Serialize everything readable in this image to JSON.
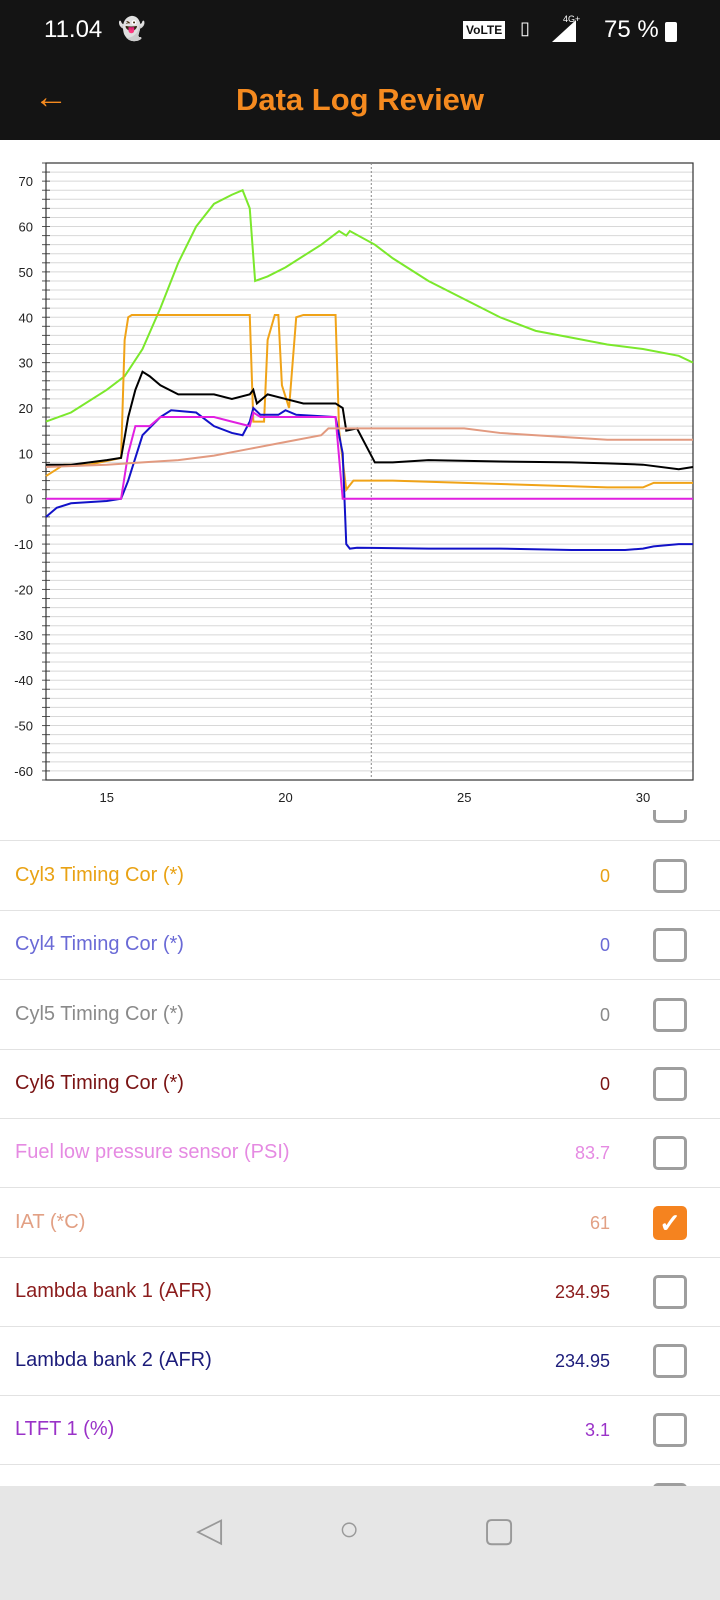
{
  "status": {
    "time": "11.04",
    "volte": "VoLTE",
    "network": "4G+",
    "battery": "75 %"
  },
  "appbar": {
    "title": "Data Log Review"
  },
  "colors": {
    "accent": "#f5831f"
  },
  "chart_data": {
    "type": "line",
    "xlim": [
      13.3,
      31.4
    ],
    "ylim": [
      -62,
      74
    ],
    "xticks": [
      15,
      20,
      25,
      30
    ],
    "yticks": [
      70,
      60,
      50,
      40,
      30,
      20,
      10,
      0,
      -10,
      -20,
      -30,
      -40,
      -50,
      -60
    ],
    "cursor_x": 22.4,
    "grid": true,
    "series": [
      {
        "name": "green",
        "color": "#7be82c",
        "points": [
          [
            13.3,
            17
          ],
          [
            14,
            19
          ],
          [
            15,
            24
          ],
          [
            15.5,
            27
          ],
          [
            16,
            33
          ],
          [
            16.5,
            42
          ],
          [
            17,
            52
          ],
          [
            17.5,
            60
          ],
          [
            18,
            65
          ],
          [
            18.5,
            67
          ],
          [
            18.8,
            68
          ],
          [
            19.0,
            64
          ],
          [
            19.15,
            48
          ],
          [
            19.5,
            49
          ],
          [
            20,
            51
          ],
          [
            21,
            56
          ],
          [
            21.5,
            59
          ],
          [
            21.7,
            58
          ],
          [
            21.8,
            59
          ],
          [
            22.5,
            56
          ],
          [
            23,
            53
          ],
          [
            24,
            48
          ],
          [
            25,
            44
          ],
          [
            26,
            40
          ],
          [
            27,
            37
          ],
          [
            28,
            35.5
          ],
          [
            29,
            34
          ],
          [
            30,
            33
          ],
          [
            31,
            31.5
          ],
          [
            31.4,
            30
          ]
        ]
      },
      {
        "name": "orange",
        "color": "#f0a318",
        "points": [
          [
            13.3,
            5
          ],
          [
            13.8,
            7.5
          ],
          [
            14.5,
            7.5
          ],
          [
            15.4,
            9
          ],
          [
            15.5,
            35
          ],
          [
            15.6,
            40
          ],
          [
            15.7,
            40.5
          ],
          [
            19.0,
            40.5
          ],
          [
            19.1,
            17
          ],
          [
            19.4,
            17
          ],
          [
            19.5,
            35
          ],
          [
            19.7,
            40.5
          ],
          [
            19.8,
            40.5
          ],
          [
            19.9,
            25
          ],
          [
            20.1,
            20
          ],
          [
            20.3,
            40
          ],
          [
            20.5,
            40.5
          ],
          [
            21.4,
            40.5
          ],
          [
            21.5,
            15
          ],
          [
            21.7,
            2
          ],
          [
            21.9,
            4
          ],
          [
            23,
            4
          ],
          [
            25,
            3.5
          ],
          [
            27,
            3
          ],
          [
            29,
            2.5
          ],
          [
            30,
            2.5
          ],
          [
            30.3,
            3.5
          ],
          [
            31.4,
            3.5
          ]
        ]
      },
      {
        "name": "black",
        "color": "#000000",
        "points": [
          [
            13.3,
            7.5
          ],
          [
            14,
            7.5
          ],
          [
            15,
            8.5
          ],
          [
            15.4,
            9
          ],
          [
            15.6,
            18
          ],
          [
            15.8,
            24
          ],
          [
            16,
            28
          ],
          [
            16.2,
            27
          ],
          [
            16.5,
            25
          ],
          [
            17,
            23
          ],
          [
            18,
            23
          ],
          [
            18.5,
            22
          ],
          [
            19,
            23
          ],
          [
            19.1,
            24
          ],
          [
            19.2,
            21
          ],
          [
            19.5,
            23
          ],
          [
            20,
            22
          ],
          [
            20.5,
            21
          ],
          [
            21.4,
            21
          ],
          [
            21.6,
            20
          ],
          [
            21.7,
            15
          ],
          [
            22,
            15.5
          ],
          [
            22.5,
            8
          ],
          [
            23,
            8
          ],
          [
            24,
            8.5
          ],
          [
            26,
            8.2
          ],
          [
            28,
            8
          ],
          [
            29,
            7.8
          ],
          [
            30,
            7.5
          ],
          [
            31,
            6.5
          ],
          [
            31.4,
            7
          ]
        ]
      },
      {
        "name": "blue",
        "color": "#1212c8",
        "points": [
          [
            13.3,
            -4
          ],
          [
            13.6,
            -2
          ],
          [
            14,
            -1
          ],
          [
            15,
            -0.5
          ],
          [
            15.4,
            0
          ],
          [
            15.6,
            4
          ],
          [
            16,
            14
          ],
          [
            16.5,
            18
          ],
          [
            16.8,
            19.5
          ],
          [
            17.5,
            19
          ],
          [
            18,
            16
          ],
          [
            18.5,
            14.5
          ],
          [
            18.8,
            14
          ],
          [
            19.0,
            17
          ],
          [
            19.1,
            20
          ],
          [
            19.3,
            18.5
          ],
          [
            19.8,
            18.5
          ],
          [
            20,
            19.5
          ],
          [
            20.3,
            18.5
          ],
          [
            21.4,
            18
          ],
          [
            21.6,
            10
          ],
          [
            21.7,
            -10
          ],
          [
            21.8,
            -11
          ],
          [
            22,
            -10.8
          ],
          [
            24,
            -11
          ],
          [
            26,
            -11
          ],
          [
            28,
            -11.3
          ],
          [
            29.5,
            -11.3
          ],
          [
            30,
            -11
          ],
          [
            30.3,
            -10.5
          ],
          [
            31,
            -10
          ],
          [
            31.4,
            -10
          ]
        ]
      },
      {
        "name": "magenta",
        "color": "#e020e0",
        "points": [
          [
            13.3,
            0
          ],
          [
            15.4,
            0
          ],
          [
            15.6,
            10
          ],
          [
            15.8,
            16
          ],
          [
            16.2,
            16
          ],
          [
            16.5,
            18
          ],
          [
            18,
            18
          ],
          [
            18.5,
            17
          ],
          [
            19,
            16
          ],
          [
            19.1,
            19
          ],
          [
            19.3,
            18
          ],
          [
            21.4,
            18
          ],
          [
            21.6,
            0
          ],
          [
            31.4,
            0
          ]
        ]
      },
      {
        "name": "salmon",
        "color": "#e29a80",
        "points": [
          [
            13.3,
            7
          ],
          [
            15,
            7.5
          ],
          [
            16,
            8
          ],
          [
            17,
            8.5
          ],
          [
            18,
            9.5
          ],
          [
            19,
            11
          ],
          [
            20,
            12.5
          ],
          [
            21,
            14
          ],
          [
            21.2,
            15.5
          ],
          [
            25,
            15.5
          ],
          [
            26,
            14.5
          ],
          [
            28,
            13.5
          ],
          [
            29,
            13
          ],
          [
            31.4,
            13
          ]
        ]
      }
    ]
  },
  "list": {
    "items": [
      {
        "label": "Cyl3 Timing Cor (*)",
        "value": "0",
        "color": "#e9a214",
        "checked": false
      },
      {
        "label": "Cyl4 Timing Cor (*)",
        "value": "0",
        "color": "#6a6ad6",
        "checked": false
      },
      {
        "label": "Cyl5 Timing Cor (*)",
        "value": "0",
        "color": "#8a8a8a",
        "checked": false
      },
      {
        "label": "Cyl6 Timing Cor (*)",
        "value": "0",
        "color": "#7a1414",
        "checked": false
      },
      {
        "label": "Fuel low pressure sensor (PSI)",
        "value": "83.7",
        "color": "#e58ae2",
        "checked": false
      },
      {
        "label": "IAT (*C)",
        "value": "61",
        "color": "#e2a084",
        "checked": true
      },
      {
        "label": "Lambda bank 1 (AFR)",
        "value": "234.95",
        "color": "#8b1c1c",
        "checked": false
      },
      {
        "label": "Lambda bank 2 (AFR)",
        "value": "234.95",
        "color": "#1c1c7a",
        "checked": false
      },
      {
        "label": "LTFT 1 (%)",
        "value": "3.1",
        "color": "#9a32c8",
        "checked": false
      }
    ]
  }
}
